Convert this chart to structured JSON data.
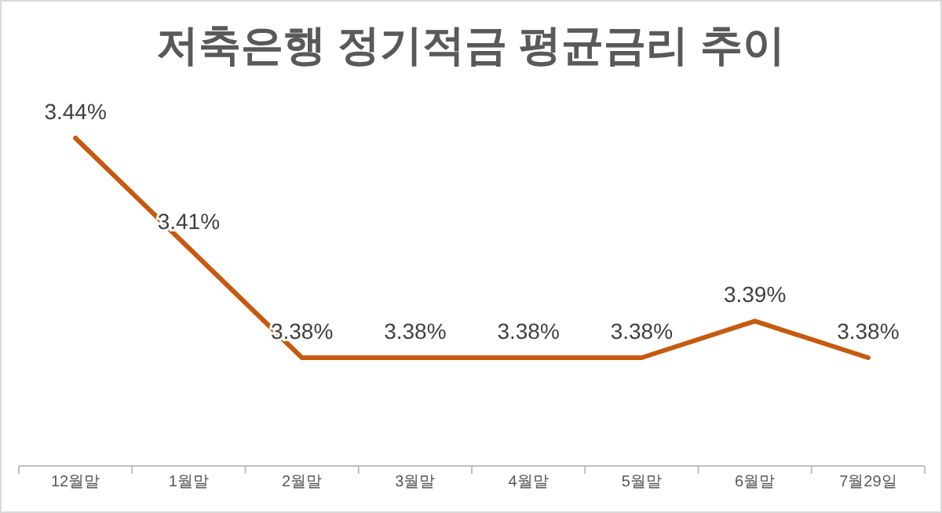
{
  "chart_data": {
    "type": "line",
    "title": "저축은행 정기적금 평균금리 추이",
    "categories": [
      "12월말",
      "1월말",
      "2월말",
      "3월말",
      "4월말",
      "5월말",
      "6월말",
      "7월29일"
    ],
    "series": [
      {
        "color": "#c55a11",
        "values": [
          3.44,
          3.41,
          3.38,
          3.38,
          3.38,
          3.38,
          3.39,
          3.38
        ],
        "value_labels": [
          "3.44%",
          "3.41%",
          "3.38%",
          "3.38%",
          "3.38%",
          "3.38%",
          "3.39%",
          "3.38%"
        ]
      }
    ],
    "grid": false,
    "marker": "none",
    "line_style": "solid"
  }
}
